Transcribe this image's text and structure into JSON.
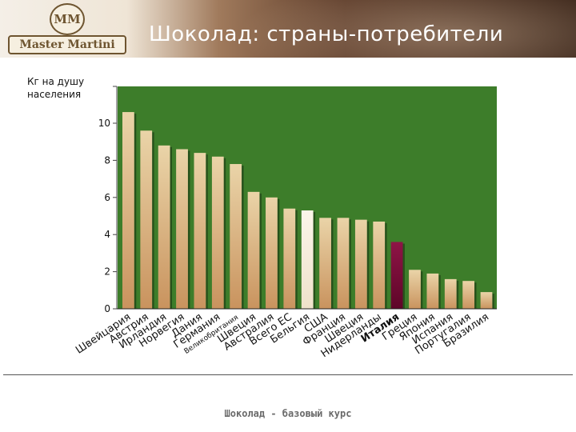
{
  "header": {
    "logo_text": "Master Martini",
    "logo_mark": "MM",
    "title": "Шоколад: страны-потребители"
  },
  "colors": {
    "bar_default": "#d8bc8a",
    "bar_highlight": "#7a0b3a",
    "bar_light": "#f3e9d8",
    "plot_background": "#3d7d2a"
  },
  "chart_data": {
    "type": "bar",
    "ylabel": "Кг на душу населения",
    "ylim": [
      0,
      12
    ],
    "yticks": [
      0,
      2,
      4,
      6,
      8,
      10
    ],
    "grid": false,
    "legend": "none",
    "categories": [
      "Швейцария",
      "Австрия",
      "Ирландия",
      "Норвегия",
      "Дания",
      "Германия",
      "Великобритания",
      "Швеция",
      "Австралия",
      "Всего ЕС",
      "Бельгия",
      "США",
      "Франция",
      "Швеция",
      "Нидерланды",
      "Италия",
      "Греция",
      "Япония",
      "Испания",
      "Португалия",
      "Бразилия"
    ],
    "values": [
      10.6,
      9.6,
      8.8,
      8.6,
      8.4,
      8.2,
      7.8,
      6.3,
      6.0,
      5.4,
      5.3,
      4.9,
      4.9,
      4.8,
      4.7,
      3.6,
      2.1,
      1.9,
      1.6,
      1.5,
      0.9
    ],
    "highlight_index": 15,
    "light_index": 10
  },
  "footer": {
    "text": "Шоколад - базовый курс"
  }
}
